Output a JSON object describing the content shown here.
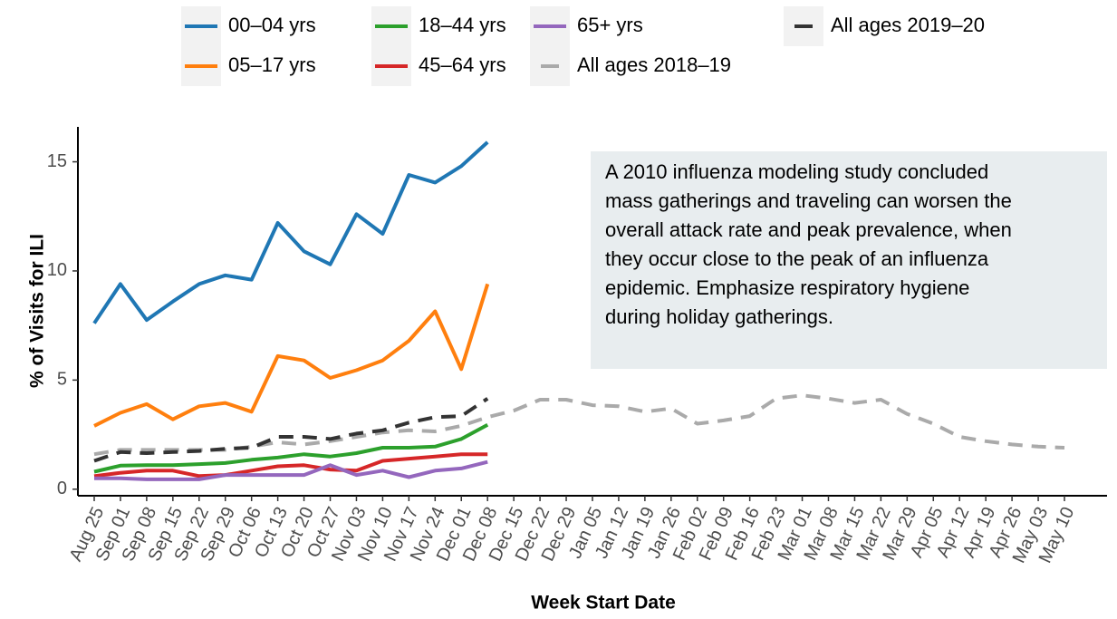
{
  "chart_data": {
    "type": "line",
    "x_label": "Week Start Date",
    "y_label": "% of Visits for ILI",
    "ylim": [
      -0.3,
      16.6
    ],
    "yticks": [
      0,
      5,
      10,
      15
    ],
    "annotation": [
      "A 2010 influenza modeling study concluded",
      "mass gatherings and traveling can worsen the",
      "overall attack rate and peak prevalence, when",
      "they occur close to the peak of an influenza",
      "epidemic. Emphasize respiratory hygiene",
      "during holiday gatherings."
    ],
    "categories": [
      "Aug 25",
      "Sep 01",
      "Sep 08",
      "Sep 15",
      "Sep 22",
      "Sep 29",
      "Oct 06",
      "Oct 13",
      "Oct 20",
      "Oct 27",
      "Nov 03",
      "Nov 10",
      "Nov 17",
      "Nov 24",
      "Dec 01",
      "Dec 08",
      "Dec 15",
      "Dec 22",
      "Dec 29",
      "Jan 05",
      "Jan 12",
      "Jan 19",
      "Jan 26",
      "Feb 02",
      "Feb 09",
      "Feb 16",
      "Feb 23",
      "Mar 01",
      "Mar 08",
      "Mar 15",
      "Mar 22",
      "Mar 29",
      "Apr 05",
      "Apr 12",
      "Apr 19",
      "Apr 26",
      "May 03",
      "May 10"
    ],
    "series": [
      {
        "name": "00–04 yrs",
        "color": "#1f77b4",
        "linestyle": "solid",
        "values": [
          7.6,
          9.4,
          7.75,
          8.6,
          9.4,
          9.8,
          9.6,
          12.2,
          10.9,
          10.3,
          12.6,
          11.7,
          14.4,
          14.05,
          14.8,
          15.9,
          null,
          null,
          null,
          null,
          null,
          null,
          null,
          null,
          null,
          null,
          null,
          null,
          null,
          null,
          null,
          null,
          null,
          null,
          null,
          null,
          null,
          null
        ]
      },
      {
        "name": "05–17 yrs",
        "color": "#ff7f0e",
        "linestyle": "solid",
        "values": [
          2.9,
          3.5,
          3.9,
          3.2,
          3.8,
          3.95,
          3.55,
          6.1,
          5.9,
          5.1,
          5.45,
          5.9,
          6.8,
          8.15,
          5.5,
          9.4,
          null,
          null,
          null,
          null,
          null,
          null,
          null,
          null,
          null,
          null,
          null,
          null,
          null,
          null,
          null,
          null,
          null,
          null,
          null,
          null,
          null,
          null
        ]
      },
      {
        "name": "18–44 yrs",
        "color": "#2ca02c",
        "linestyle": "solid",
        "values": [
          0.8,
          1.08,
          1.1,
          1.1,
          1.15,
          1.2,
          1.35,
          1.45,
          1.6,
          1.5,
          1.65,
          1.9,
          1.9,
          1.95,
          2.3,
          2.95,
          null,
          null,
          null,
          null,
          null,
          null,
          null,
          null,
          null,
          null,
          null,
          null,
          null,
          null,
          null,
          null,
          null,
          null,
          null,
          null,
          null,
          null
        ]
      },
      {
        "name": "45–64 yrs",
        "color": "#d62728",
        "linestyle": "solid",
        "values": [
          0.6,
          0.75,
          0.85,
          0.85,
          0.6,
          0.65,
          0.85,
          1.05,
          1.1,
          0.9,
          0.85,
          1.3,
          1.4,
          1.5,
          1.6,
          1.6,
          null,
          null,
          null,
          null,
          null,
          null,
          null,
          null,
          null,
          null,
          null,
          null,
          null,
          null,
          null,
          null,
          null,
          null,
          null,
          null,
          null,
          null
        ]
      },
      {
        "name": "65+ yrs",
        "color": "#9467bd",
        "linestyle": "solid",
        "values": [
          0.5,
          0.5,
          0.45,
          0.45,
          0.45,
          0.65,
          0.65,
          0.65,
          0.65,
          1.1,
          0.65,
          0.85,
          0.55,
          0.85,
          0.95,
          1.25,
          null,
          null,
          null,
          null,
          null,
          null,
          null,
          null,
          null,
          null,
          null,
          null,
          null,
          null,
          null,
          null,
          null,
          null,
          null,
          null,
          null,
          null
        ]
      },
      {
        "name": "All ages 2018–19",
        "color": "#aaaaaa",
        "linestyle": "dashed",
        "values": [
          1.6,
          1.8,
          1.8,
          1.8,
          1.8,
          1.8,
          1.95,
          2.15,
          2.05,
          2.2,
          2.4,
          2.6,
          2.7,
          2.65,
          2.9,
          3.3,
          3.6,
          4.1,
          4.1,
          3.85,
          3.8,
          3.55,
          3.7,
          3.0,
          3.15,
          3.35,
          4.15,
          4.3,
          4.15,
          3.95,
          4.1,
          3.45,
          3.0,
          2.4,
          2.2,
          2.05,
          1.95,
          1.9
        ]
      },
      {
        "name": "All ages 2019–20",
        "color": "#333333",
        "linestyle": "dashed",
        "values": [
          1.3,
          1.7,
          1.65,
          1.7,
          1.75,
          1.85,
          1.9,
          2.4,
          2.4,
          2.3,
          2.55,
          2.7,
          3.05,
          3.3,
          3.35,
          4.15,
          null,
          null,
          null,
          null,
          null,
          null,
          null,
          null,
          null,
          null,
          null,
          null,
          null,
          null,
          null,
          null,
          null,
          null,
          null,
          null,
          null,
          null
        ]
      }
    ]
  }
}
